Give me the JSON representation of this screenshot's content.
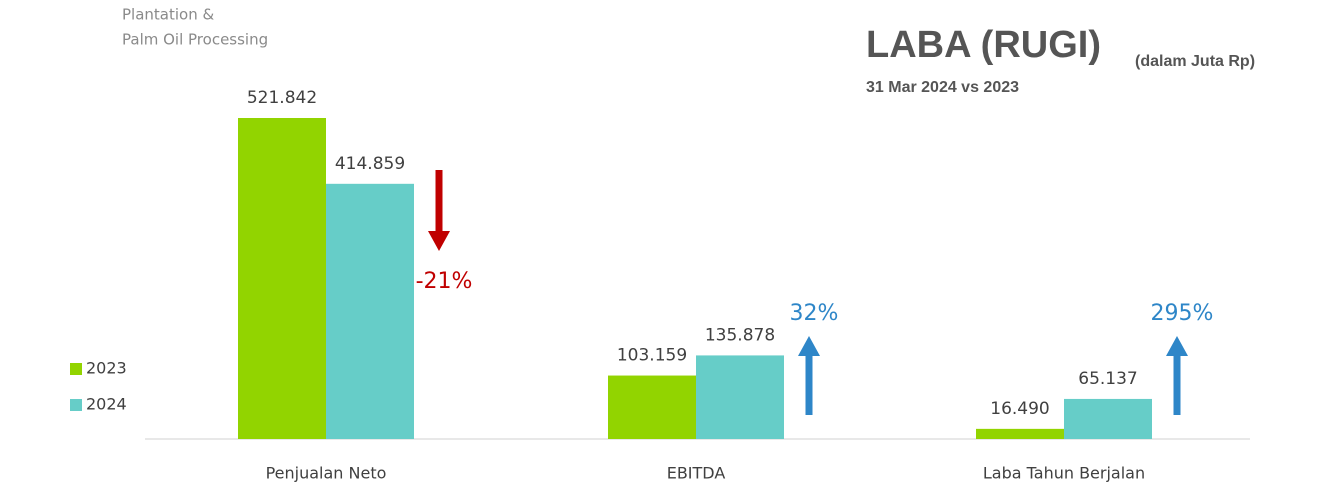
{
  "chart_data": {
    "type": "bar",
    "title": "LABA (RUGI)",
    "title_note": "(dalam Juta Rp)",
    "subtitle": "31 Mar 2024 vs 2023",
    "brand": [
      "Plantation &",
      "Palm Oil Processing"
    ],
    "categories": [
      "Penjualan Neto",
      "EBITDA",
      "Laba Tahun Berjalan"
    ],
    "series": [
      {
        "name": "2023",
        "color": "#92d400",
        "values": [
          521842,
          103159,
          16490
        ],
        "value_labels": [
          "521.842",
          "103.159",
          "16.490"
        ]
      },
      {
        "name": "2024",
        "color": "#66cdc8",
        "values": [
          414859,
          135878,
          65137
        ],
        "value_labels": [
          "414.859",
          "135.878",
          "65.137"
        ]
      }
    ],
    "annotations": [
      {
        "text": "-21%",
        "color": "#c00000",
        "direction": "down"
      },
      {
        "text": "32%",
        "color": "#2e86c8",
        "direction": "up"
      },
      {
        "text": "295%",
        "color": "#2e86c8",
        "direction": "up"
      }
    ],
    "legend": "left"
  }
}
